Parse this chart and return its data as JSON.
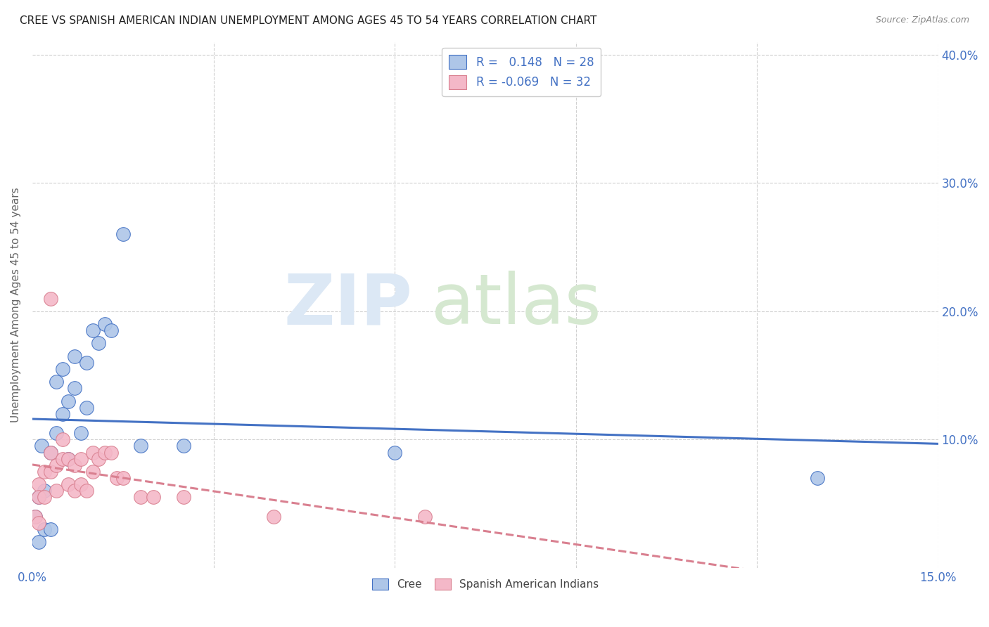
{
  "title": "CREE VS SPANISH AMERICAN INDIAN UNEMPLOYMENT AMONG AGES 45 TO 54 YEARS CORRELATION CHART",
  "source": "Source: ZipAtlas.com",
  "ylabel": "Unemployment Among Ages 45 to 54 years",
  "xlim": [
    0.0,
    0.15
  ],
  "ylim": [
    0.0,
    0.41
  ],
  "xticks": [
    0.0,
    0.03,
    0.06,
    0.09,
    0.12,
    0.15
  ],
  "yticks": [
    0.0,
    0.1,
    0.2,
    0.3,
    0.4
  ],
  "cree_color": "#aec6e8",
  "spanish_color": "#f4b8c8",
  "cree_line_color": "#4472c4",
  "spanish_line_color": "#d98090",
  "legend_R_cree": "0.148",
  "legend_N_cree": "28",
  "legend_R_spanish": "-0.069",
  "legend_N_spanish": "32",
  "cree_x": [
    0.0005,
    0.001,
    0.001,
    0.0015,
    0.002,
    0.002,
    0.003,
    0.003,
    0.004,
    0.004,
    0.005,
    0.005,
    0.006,
    0.006,
    0.007,
    0.007,
    0.008,
    0.009,
    0.009,
    0.01,
    0.011,
    0.012,
    0.013,
    0.015,
    0.018,
    0.025,
    0.06,
    0.13
  ],
  "cree_y": [
    0.04,
    0.055,
    0.02,
    0.095,
    0.06,
    0.03,
    0.09,
    0.03,
    0.145,
    0.105,
    0.155,
    0.12,
    0.13,
    0.085,
    0.165,
    0.14,
    0.105,
    0.16,
    0.125,
    0.185,
    0.175,
    0.19,
    0.185,
    0.26,
    0.095,
    0.095,
    0.09,
    0.07
  ],
  "spanish_x": [
    0.0005,
    0.001,
    0.001,
    0.001,
    0.002,
    0.002,
    0.003,
    0.003,
    0.003,
    0.004,
    0.004,
    0.005,
    0.005,
    0.006,
    0.006,
    0.007,
    0.007,
    0.008,
    0.008,
    0.009,
    0.01,
    0.01,
    0.011,
    0.012,
    0.013,
    0.014,
    0.015,
    0.018,
    0.02,
    0.025,
    0.04,
    0.065
  ],
  "spanish_y": [
    0.04,
    0.065,
    0.055,
    0.035,
    0.075,
    0.055,
    0.21,
    0.09,
    0.075,
    0.08,
    0.06,
    0.1,
    0.085,
    0.085,
    0.065,
    0.08,
    0.06,
    0.085,
    0.065,
    0.06,
    0.09,
    0.075,
    0.085,
    0.09,
    0.09,
    0.07,
    0.07,
    0.055,
    0.055,
    0.055,
    0.04,
    0.04
  ],
  "background_color": "#ffffff",
  "grid_color": "#d0d0d0"
}
